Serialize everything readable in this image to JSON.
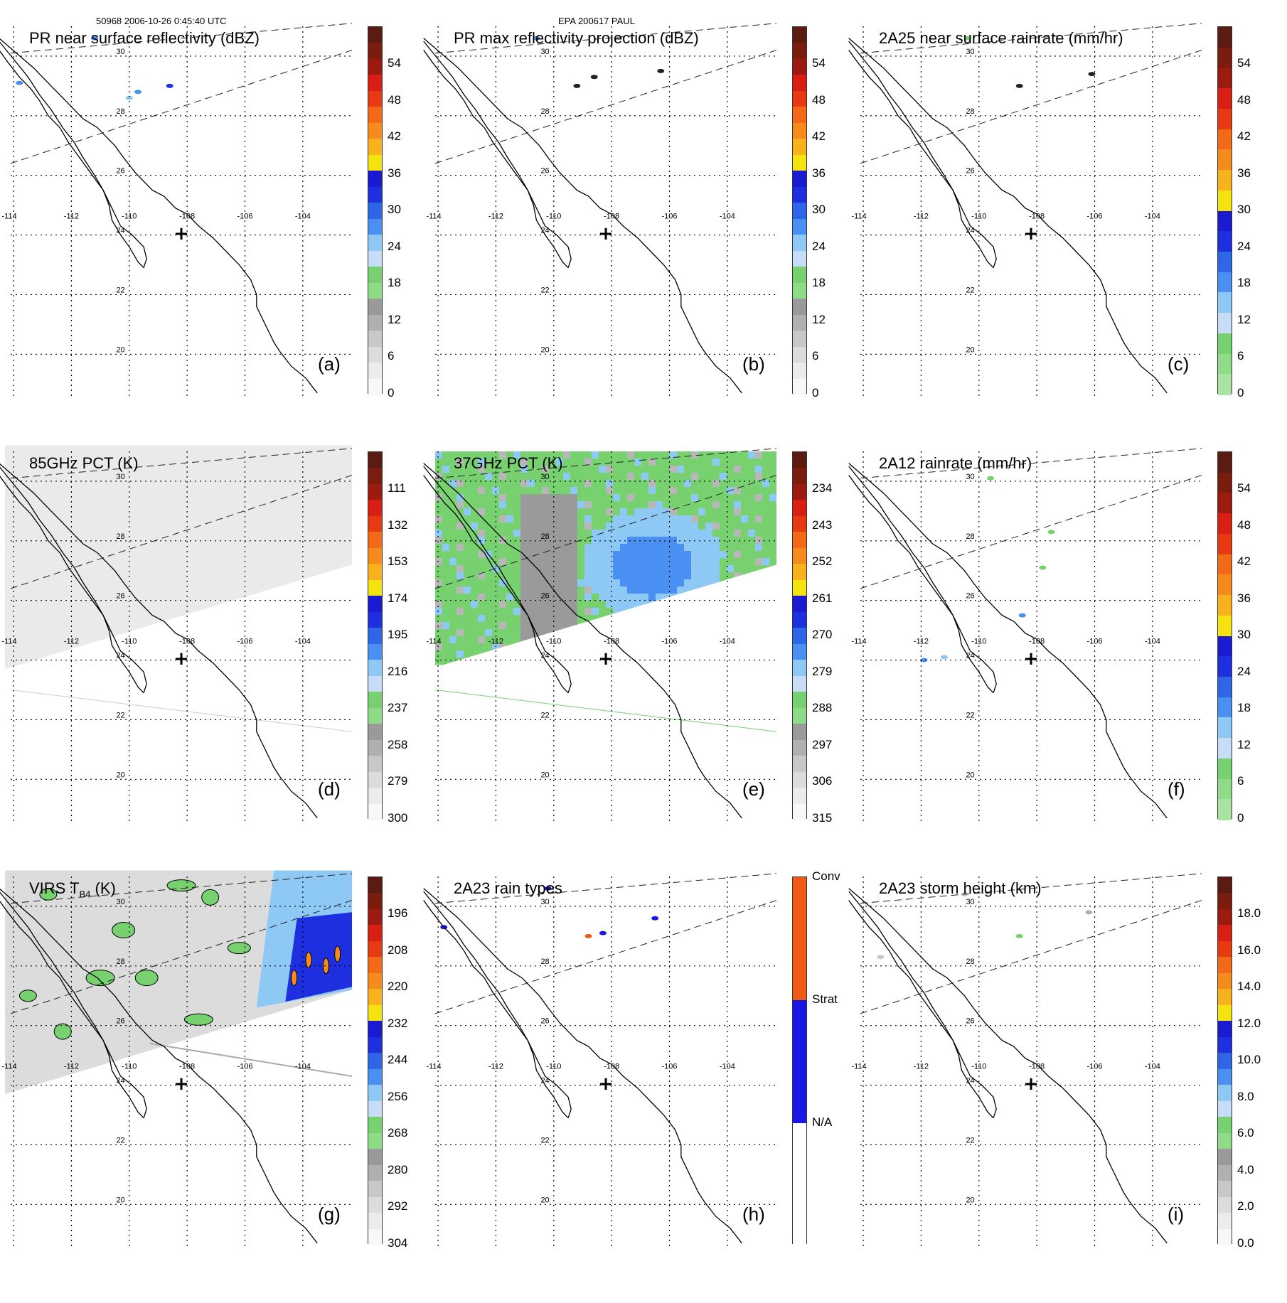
{
  "header": {
    "orbit_time": "50968 2006-10-26 0:45:40 UTC",
    "storm": "EPA 200617 PAUL"
  },
  "map": {
    "lon_labels": [
      "-114",
      "-112",
      "-110",
      "-108",
      "-106",
      "-104"
    ],
    "lat_labels": [
      "30",
      "28",
      "26",
      "24",
      "22",
      "20"
    ],
    "storm_center_symbol": "+"
  },
  "colors": {
    "coast": "#000000",
    "grid": "#000000",
    "swath": "#222222",
    "green": "#76d16e",
    "light_blue": "#8ec9f5",
    "blue": "#1e2fe0",
    "yellow": "#f4e30e",
    "orange": "#f58a1d",
    "red": "#d91e14",
    "dark_red": "#5c1b10",
    "gray": "#9a9a9a",
    "conv": "#f05a14",
    "strat": "#1818e6"
  },
  "panels": [
    {
      "id": "a",
      "title": "PR near surface reflectivity (dBZ)",
      "label": "(a)",
      "ticks": [
        "54",
        "48",
        "42",
        "36",
        "30",
        "24",
        "18",
        "12",
        "6",
        "0"
      ],
      "scale": "dbz"
    },
    {
      "id": "b",
      "title": "PR max reflectivity projection (dBZ)",
      "label": "(b)",
      "ticks": [
        "54",
        "48",
        "42",
        "36",
        "30",
        "24",
        "18",
        "12",
        "6",
        "0"
      ],
      "scale": "dbz"
    },
    {
      "id": "c",
      "title": "2A25 near surface rainrate (mm/hr)",
      "label": "(c)",
      "ticks": [
        "54",
        "48",
        "42",
        "36",
        "30",
        "24",
        "18",
        "12",
        "6",
        "0"
      ],
      "scale": "rain"
    },
    {
      "id": "d",
      "title": "85GHz PCT (K)",
      "label": "(d)",
      "ticks": [
        "111",
        "132",
        "153",
        "174",
        "195",
        "216",
        "237",
        "258",
        "279",
        "300"
      ],
      "scale": "pct"
    },
    {
      "id": "e",
      "title": "37GHz PCT (K)",
      "label": "(e)",
      "ticks": [
        "234",
        "243",
        "252",
        "261",
        "270",
        "279",
        "288",
        "297",
        "306",
        "315"
      ],
      "scale": "pct"
    },
    {
      "id": "f",
      "title": "2A12 rainrate (mm/hr)",
      "label": "(f)",
      "ticks": [
        "54",
        "48",
        "42",
        "36",
        "30",
        "24",
        "18",
        "12",
        "6",
        "0"
      ],
      "scale": "rain"
    },
    {
      "id": "g",
      "title": "VIRS T",
      "title_sub": "B4",
      "title_tail": " (K)",
      "label": "(g)",
      "ticks": [
        "196",
        "208",
        "220",
        "232",
        "244",
        "256",
        "268",
        "280",
        "292",
        "304"
      ],
      "scale": "pct"
    },
    {
      "id": "h",
      "title": "2A23 rain types",
      "label": "(h)",
      "ticks": [
        "Conv",
        "Strat",
        "N/A"
      ],
      "scale": "type"
    },
    {
      "id": "i",
      "title": "2A23 storm height (km)",
      "label": "(i)",
      "ticks": [
        "18.0",
        "16.0",
        "14.0",
        "12.0",
        "10.0",
        "8.0",
        "6.0",
        "4.0",
        "2.0",
        "0.0"
      ],
      "scale": "dbz"
    }
  ]
}
